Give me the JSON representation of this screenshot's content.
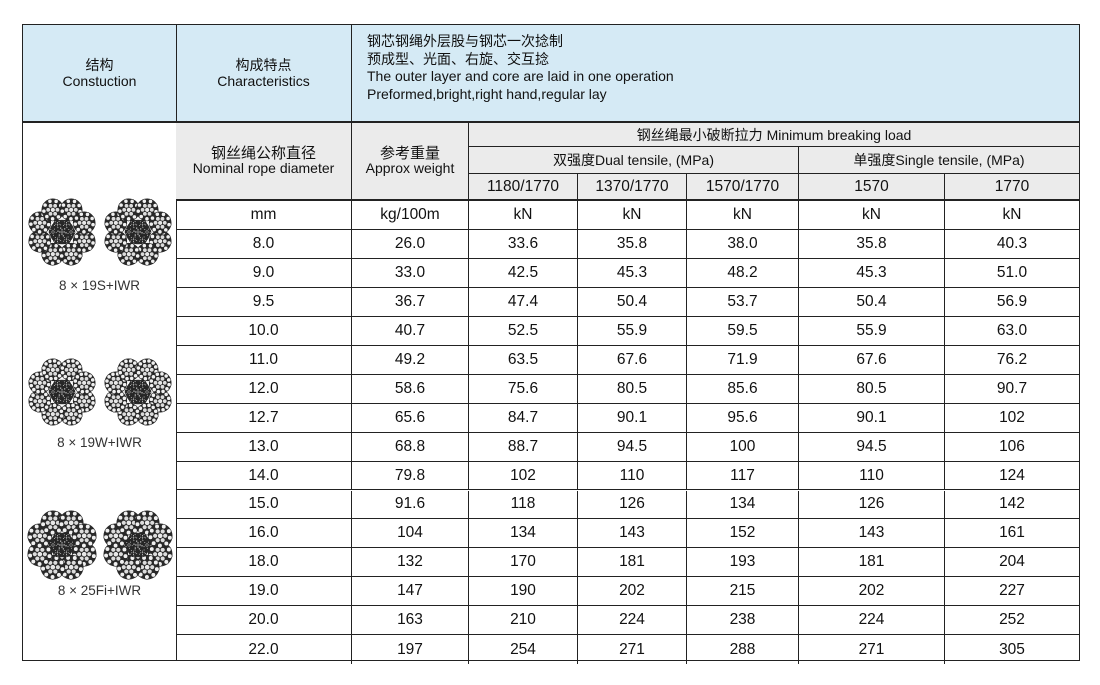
{
  "header": {
    "structure_zh": "结构",
    "structure_en": "Constuction",
    "characteristics_zh": "构成特点",
    "characteristics_en": "Characteristics",
    "desc_lines": [
      "钢芯钢绳外层股与钢芯一次捻制",
      "预成型、光面、右旋、交互捻",
      "The outer layer and core are laid in one operation",
      "Preformed,bright,right hand,regular lay"
    ]
  },
  "ropes": [
    {
      "label": "8 × 19S+IWR",
      "icon": "wire-rope-cross-section-icon"
    },
    {
      "label": "8 × 19W+IWR",
      "icon": "wire-rope-cross-section-icon"
    },
    {
      "label": "8 × 25Fi+IWR",
      "icon": "wire-rope-cross-section-icon"
    }
  ],
  "table": {
    "diameter_zh": "钢丝绳公称直径",
    "diameter_en": "Nominal rope diameter",
    "weight_zh": "参考重量",
    "weight_en": "Approx weight",
    "mbl_title": "钢丝绳最小破断拉力  Minimum breaking load",
    "dual_title": "双强度Dual tensile, (MPa)",
    "single_title": "单强度Single tensile, (MPa)",
    "grades": [
      "1180/1770",
      "1370/1770",
      "1570/1770",
      "1570",
      "1770"
    ],
    "units": [
      "mm",
      "kg/100m",
      "kN",
      "kN",
      "kN",
      "kN",
      "kN"
    ],
    "rows": [
      [
        "8.0",
        "26.0",
        "33.6",
        "35.8",
        "38.0",
        "35.8",
        "40.3"
      ],
      [
        "9.0",
        "33.0",
        "42.5",
        "45.3",
        "48.2",
        "45.3",
        "51.0"
      ],
      [
        "9.5",
        "36.7",
        "47.4",
        "50.4",
        "53.7",
        "50.4",
        "56.9"
      ],
      [
        "10.0",
        "40.7",
        "52.5",
        "55.9",
        "59.5",
        "55.9",
        "63.0"
      ],
      [
        "11.0",
        "49.2",
        "63.5",
        "67.6",
        "71.9",
        "67.6",
        "76.2"
      ],
      [
        "12.0",
        "58.6",
        "75.6",
        "80.5",
        "85.6",
        "80.5",
        "90.7"
      ],
      [
        "12.7",
        "65.6",
        "84.7",
        "90.1",
        "95.6",
        "90.1",
        "102"
      ],
      [
        "13.0",
        "68.8",
        "88.7",
        "94.5",
        "100",
        "94.5",
        "106"
      ],
      [
        "14.0",
        "79.8",
        "102",
        "110",
        "117",
        "110",
        "124"
      ],
      [
        "15.0",
        "91.6",
        "118",
        "126",
        "134",
        "126",
        "142"
      ],
      [
        "16.0",
        "104",
        "134",
        "143",
        "152",
        "143",
        "161"
      ],
      [
        "18.0",
        "132",
        "170",
        "181",
        "193",
        "181",
        "204"
      ],
      [
        "19.0",
        "147",
        "190",
        "202",
        "215",
        "202",
        "227"
      ],
      [
        "20.0",
        "163",
        "210",
        "224",
        "238",
        "224",
        "252"
      ],
      [
        "22.0",
        "197",
        "254",
        "271",
        "288",
        "271",
        "305"
      ]
    ]
  }
}
